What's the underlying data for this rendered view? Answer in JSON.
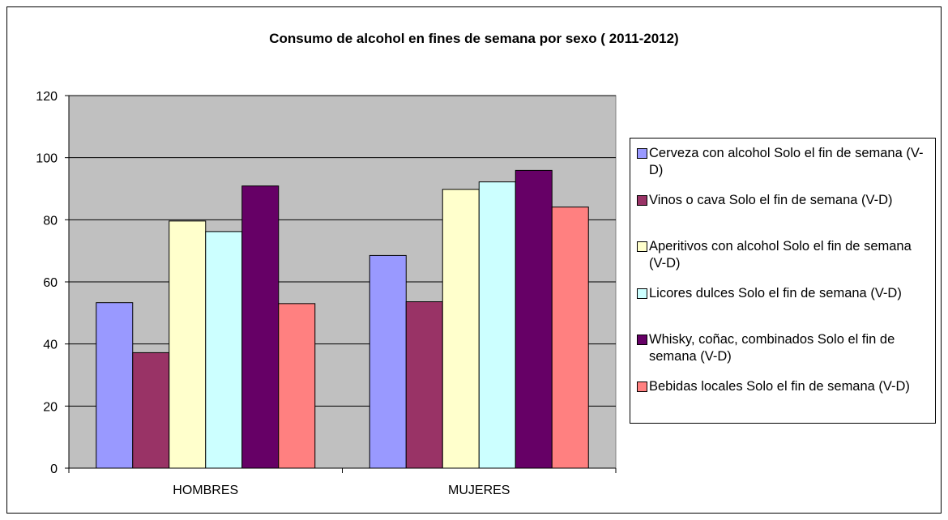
{
  "chart_data": {
    "type": "bar",
    "title": "Consumo de alcohol en fines de semana por sexo ( 2011-2012)",
    "categories": [
      "HOMBRES",
      "MUJERES"
    ],
    "series": [
      {
        "name": "Cerveza con alcohol Solo el fin de semana (V-D)",
        "color": "#9999ff",
        "values": [
          53.3,
          68.5
        ]
      },
      {
        "name": "Vinos o cava Solo el fin de semana (V-D)",
        "color": "#993366",
        "values": [
          37.2,
          53.6
        ]
      },
      {
        "name": "Aperitivos con alcohol Solo el fin de semana (V-D)",
        "color": "#ffffcc",
        "values": [
          79.6,
          89.8
        ]
      },
      {
        "name": "Licores dulces Solo el fin de semana (V-D)",
        "color": "#ccffff",
        "values": [
          76.2,
          92.2
        ]
      },
      {
        "name": "Whisky, coñac, combinados Solo el fin de semana (V-D)",
        "color": "#660066",
        "values": [
          90.9,
          95.9
        ]
      },
      {
        "name": "Bebidas locales Solo el fin de semana (V-D)",
        "color": "#ff8080",
        "values": [
          53,
          84.1
        ]
      }
    ],
    "ylim": [
      0,
      120
    ],
    "yticks": [
      0,
      20,
      40,
      60,
      80,
      100,
      120
    ],
    "grid": true,
    "legend": "right"
  }
}
